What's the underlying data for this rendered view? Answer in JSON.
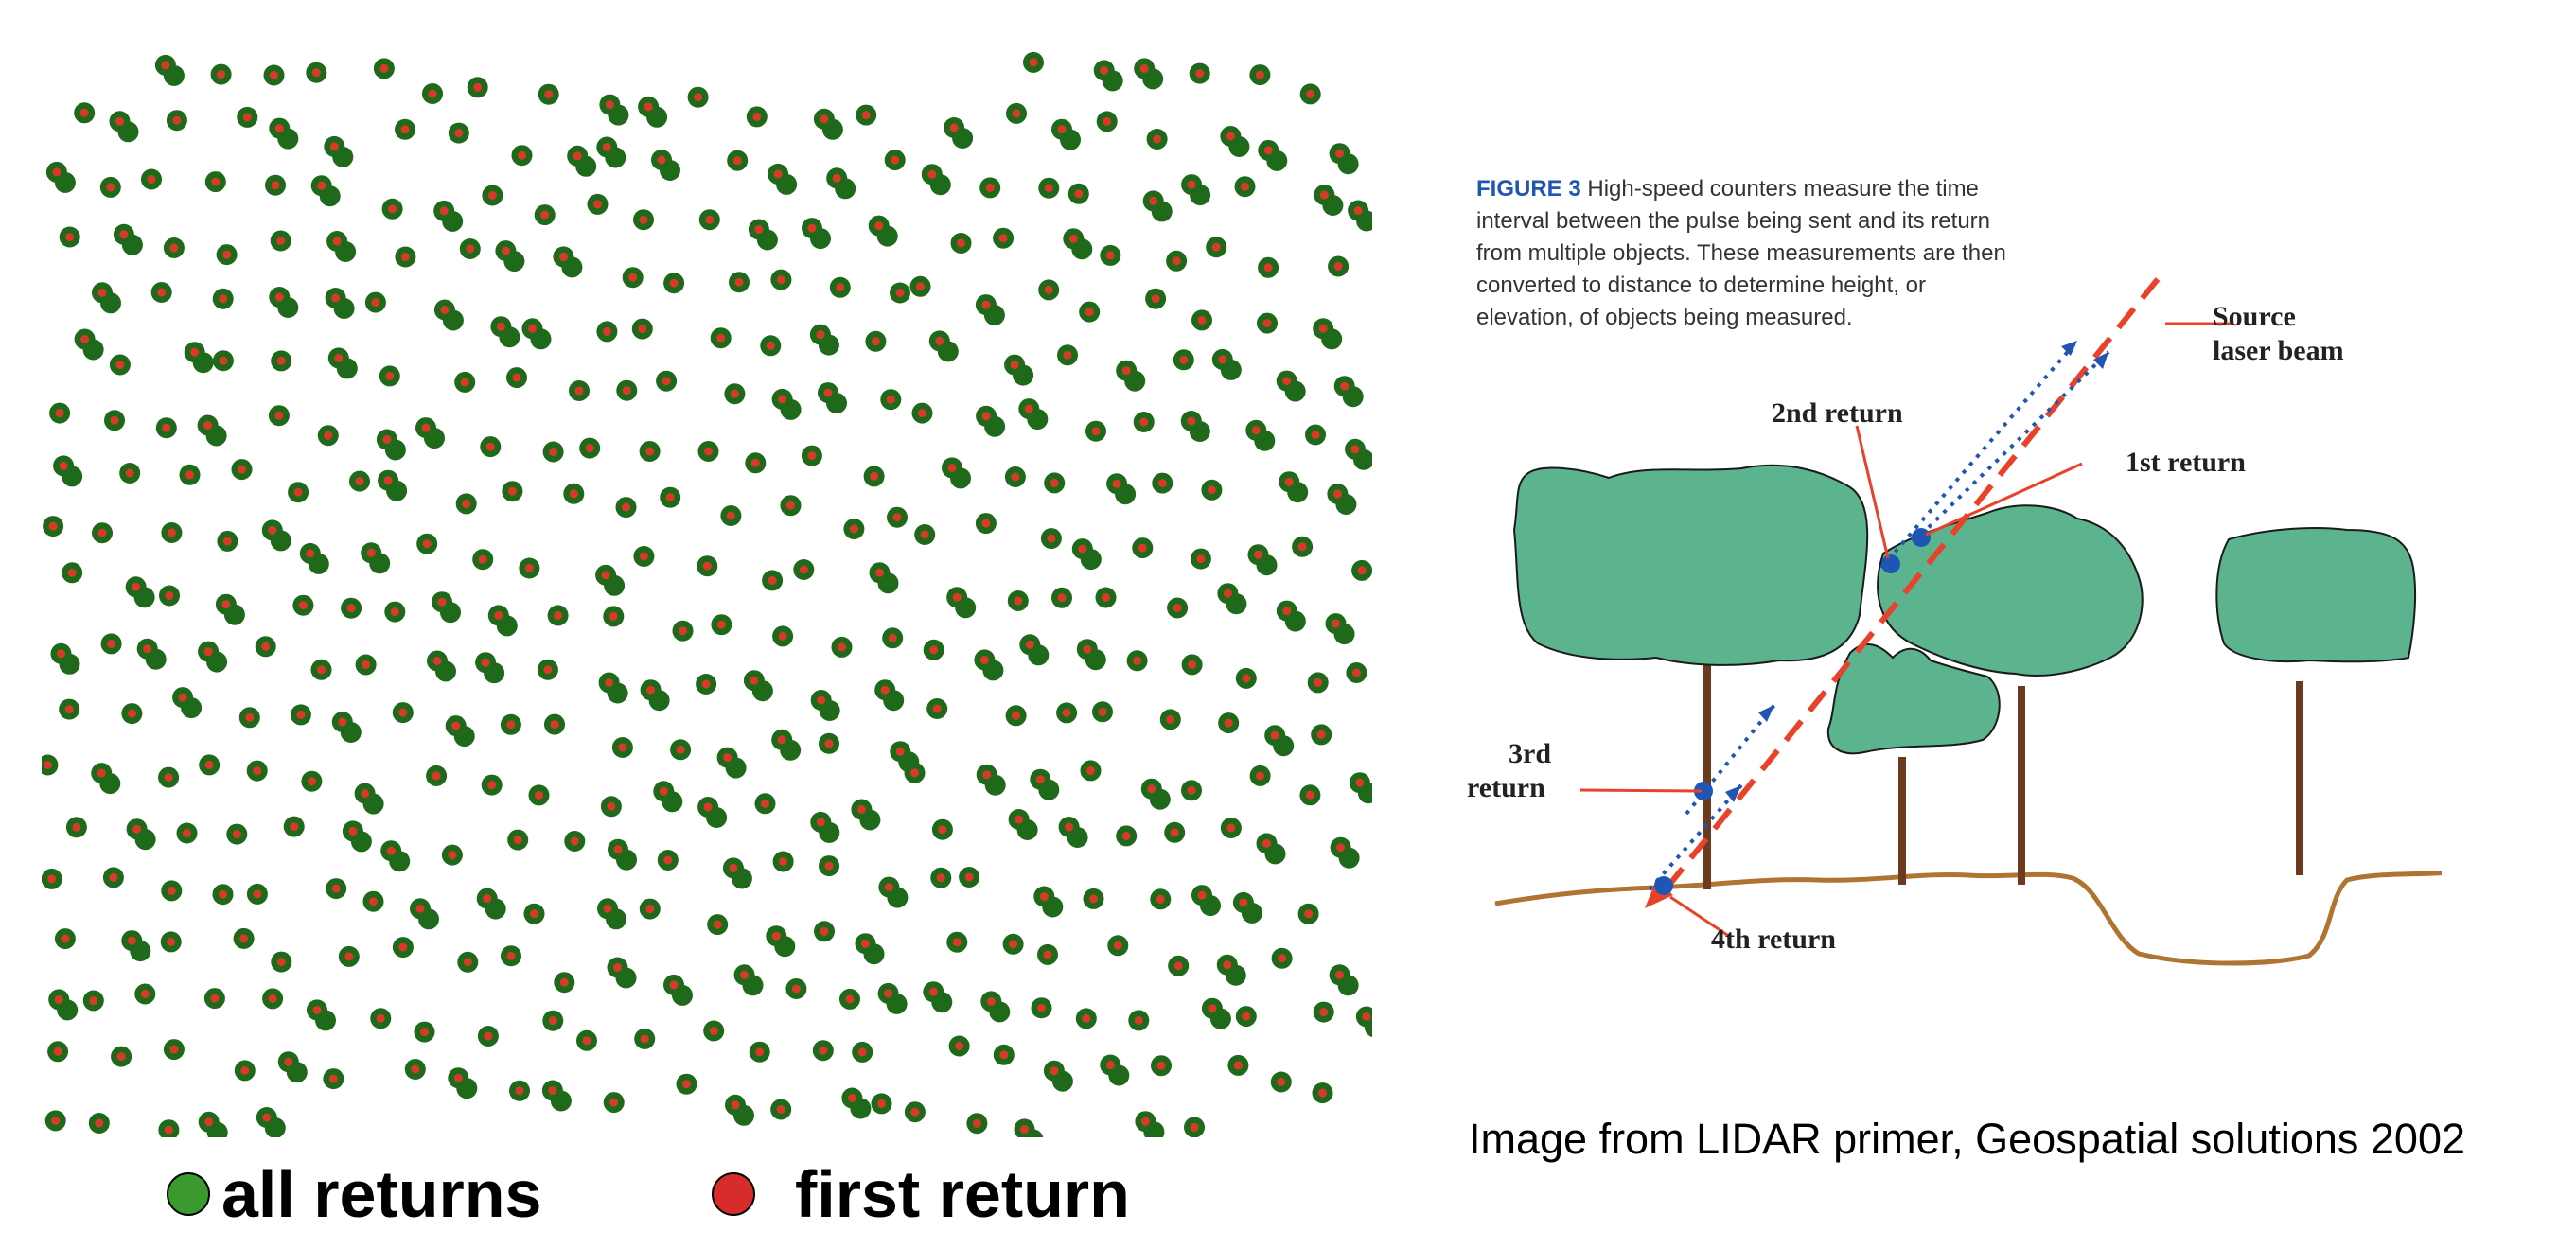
{
  "legend": {
    "all_returns": {
      "label": "all returns",
      "color": "#3a9a2e"
    },
    "first_return": {
      "label": "first return",
      "color": "#d82b2b"
    }
  },
  "scatter_colors": {
    "all_returns": "#1f6a1a",
    "first_return": "#d83a2a"
  },
  "figure": {
    "caption_prefix": "FIGURE 3",
    "caption_lines": [
      "High-speed counters measure the time",
      "interval between the pulse being sent and its return",
      "from multiple objects. These measurements are then",
      "converted to distance to determine height, or",
      "elevation, of objects being measured."
    ],
    "labels": {
      "source_line1": "Source",
      "source_line2": "laser beam",
      "second_return": "2nd return",
      "first_return": "1st return",
      "third_line1": "3rd",
      "third_line2": "return",
      "fourth_return": "4th return"
    },
    "colors": {
      "tree_canopy": "#5bb48e",
      "trunk": "#6b3a1f",
      "ground": "#b07432",
      "laser": "#e8432a",
      "return_arrows": "#1f56b4"
    }
  },
  "credit": "Image from LIDAR primer, Geospatial solutions 2002"
}
